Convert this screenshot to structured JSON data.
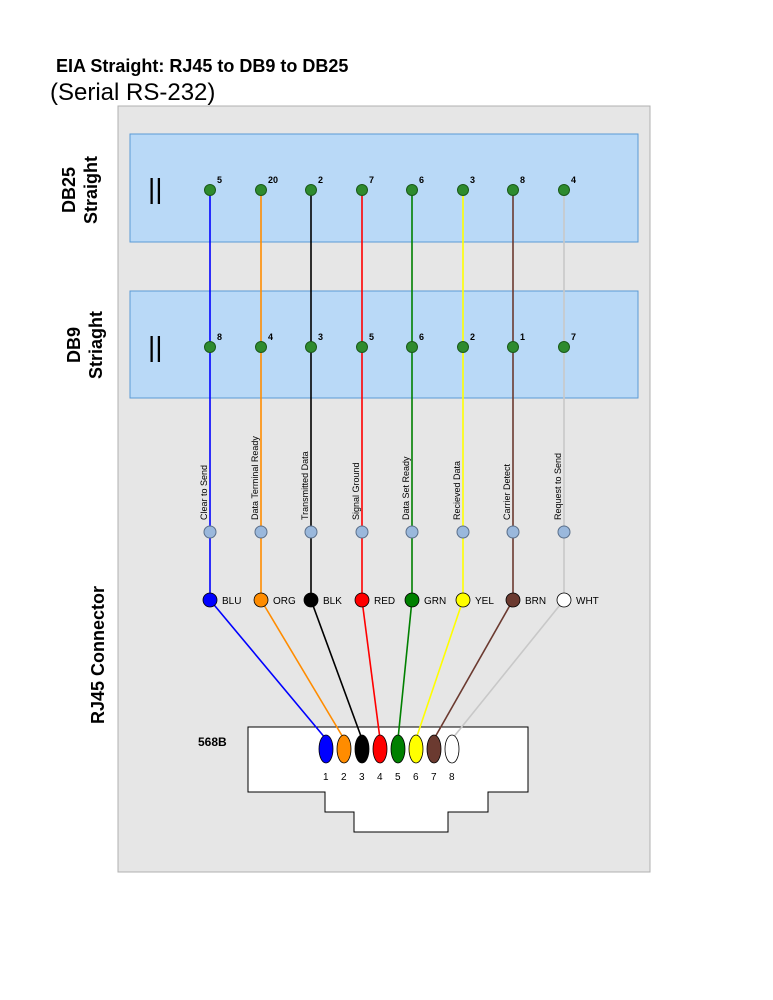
{
  "header": {
    "title": "EIA Straight: RJ45 to DB9 to DB25",
    "subtitle": "(Serial RS-232)"
  },
  "side_labels": {
    "db25": [
      "DB25",
      "Straight"
    ],
    "db9": [
      "DB9",
      "Striaght"
    ],
    "rj45": "RJ45 Connector"
  },
  "db25_mark": "||",
  "db9_mark": "||",
  "connector": {
    "label": "568B"
  },
  "colors": {
    "panel_bg": "#e6e6e6",
    "band_fill": "#b9d9f7",
    "band_stroke": "#5b9bd5",
    "pin_green": "#2e8b2e",
    "junction": "#9ab8dc"
  },
  "wires": [
    {
      "db25_pin": "5",
      "db9_pin": "8",
      "signal": "Clear to Send",
      "color_name": "BLU",
      "rj45_pin": "1",
      "color": "#0000ff"
    },
    {
      "db25_pin": "20",
      "db9_pin": "4",
      "signal": "Data Terminal Ready",
      "color_name": "ORG",
      "rj45_pin": "2",
      "color": "#ff8c00"
    },
    {
      "db25_pin": "2",
      "db9_pin": "3",
      "signal": "Transmitted Data",
      "color_name": "BLK",
      "rj45_pin": "3",
      "color": "#000000"
    },
    {
      "db25_pin": "7",
      "db9_pin": "5",
      "signal": "Signal Ground",
      "color_name": "RED",
      "rj45_pin": "4",
      "color": "#ff0000"
    },
    {
      "db25_pin": "6",
      "db9_pin": "6",
      "signal": "Data Set Ready",
      "color_name": "GRN",
      "rj45_pin": "5",
      "color": "#008000"
    },
    {
      "db25_pin": "3",
      "db9_pin": "2",
      "signal": "Recieved Data",
      "color_name": "YEL",
      "rj45_pin": "6",
      "color": "#ffff00"
    },
    {
      "db25_pin": "8",
      "db9_pin": "1",
      "signal": "Carrier Detect",
      "color_name": "BRN",
      "rj45_pin": "7",
      "color": "#6b3a30"
    },
    {
      "db25_pin": "4",
      "db9_pin": "7",
      "signal": "Request to Send",
      "color_name": "WHT",
      "rj45_pin": "8",
      "color": "#ffffff"
    }
  ]
}
